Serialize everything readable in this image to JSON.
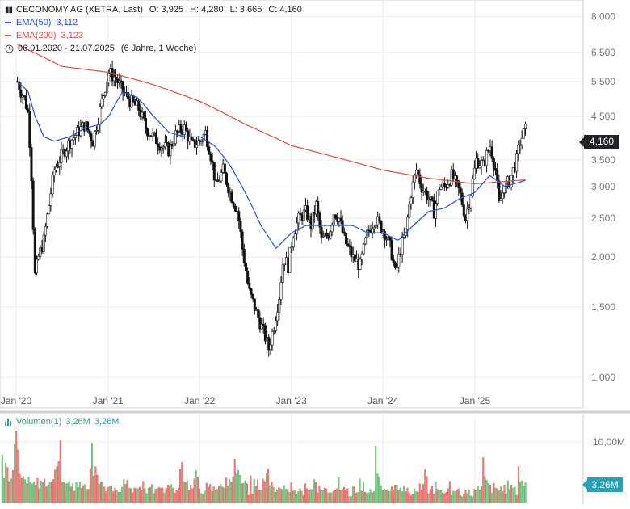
{
  "header": {
    "title": "CECONOMY AG (XETRA, Last)",
    "o_label": "O:",
    "o_value": "3,925",
    "h_label": "H:",
    "h_value": "4,280",
    "l_label": "L:",
    "l_value": "3,665",
    "c_label": "C:",
    "c_value": "4,160",
    "icon": "candlestick-icon"
  },
  "legend": {
    "ema50": {
      "label": "EMA(50)",
      "value": "3,112",
      "color": "#2a4fd6"
    },
    "ema200": {
      "label": "EMA(200)",
      "value": "3,123",
      "color": "#e04c44"
    },
    "range": {
      "icon": "clock-icon",
      "text": "06.01.2020 - 21.07.2025",
      "duration": "(6 Jahre, 1 Woche)"
    }
  },
  "price_badge": "4,160",
  "volume": {
    "label": "Volumen(1)",
    "value1": "3,26M",
    "value2": "3,26M",
    "badge": "3,26M",
    "axis_label": "10,00M"
  },
  "chart_data": [
    {
      "type": "candlestick",
      "title": "CECONOMY AG (XETRA, Last)",
      "y_scale": "log",
      "ylim": [
        0.95,
        8.8
      ],
      "y_ticks": [
        {
          "value": 8.0,
          "label": "8,000"
        },
        {
          "value": 6.5,
          "label": "6,500"
        },
        {
          "value": 5.5,
          "label": "5,500"
        },
        {
          "value": 4.5,
          "label": "4,500"
        },
        {
          "value": 3.5,
          "label": "3,500"
        },
        {
          "value": 3.0,
          "label": "3,000"
        },
        {
          "value": 2.5,
          "label": "2,500"
        },
        {
          "value": 2.0,
          "label": "2,000"
        },
        {
          "value": 1.5,
          "label": "1,500"
        },
        {
          "value": 1.0,
          "label": "1,000"
        }
      ],
      "x_range": [
        "2020-01-06",
        "2025-07-21"
      ],
      "x_ticks": [
        {
          "date": "2020-01-01",
          "label": "Jan '20"
        },
        {
          "date": "2021-01-01",
          "label": "Jan '21"
        },
        {
          "date": "2022-01-01",
          "label": "Jan '22"
        },
        {
          "date": "2023-01-01",
          "label": "Jan '23"
        },
        {
          "date": "2024-01-01",
          "label": "Jan '24"
        },
        {
          "date": "2025-01-01",
          "label": "Jan '25"
        }
      ],
      "grid": true,
      "price_anchors": [
        [
          "2020-01-06",
          5.5
        ],
        [
          "2020-01-20",
          5.2
        ],
        [
          "2020-02-03",
          5.0
        ],
        [
          "2020-02-17",
          4.6
        ],
        [
          "2020-03-02",
          3.2
        ],
        [
          "2020-03-09",
          2.4
        ],
        [
          "2020-03-16",
          1.8
        ],
        [
          "2020-03-30",
          2.0
        ],
        [
          "2020-04-20",
          2.2
        ],
        [
          "2020-05-11",
          2.7
        ],
        [
          "2020-06-01",
          3.3
        ],
        [
          "2020-07-01",
          3.6
        ],
        [
          "2020-08-03",
          3.9
        ],
        [
          "2020-09-01",
          4.1
        ],
        [
          "2020-10-01",
          4.3
        ],
        [
          "2020-11-02",
          3.9
        ],
        [
          "2020-12-01",
          4.7
        ],
        [
          "2021-01-04",
          5.8
        ],
        [
          "2021-02-01",
          5.6
        ],
        [
          "2021-03-01",
          5.2
        ],
        [
          "2021-04-01",
          4.9
        ],
        [
          "2021-05-03",
          4.7
        ],
        [
          "2021-06-01",
          4.2
        ],
        [
          "2021-07-01",
          4.0
        ],
        [
          "2021-08-02",
          3.8
        ],
        [
          "2021-09-01",
          3.7
        ],
        [
          "2021-10-01",
          4.1
        ],
        [
          "2021-11-01",
          4.2
        ],
        [
          "2021-12-01",
          3.8
        ],
        [
          "2022-01-03",
          3.9
        ],
        [
          "2022-01-24",
          4.1
        ],
        [
          "2022-02-14",
          3.6
        ],
        [
          "2022-03-07",
          3.0
        ],
        [
          "2022-04-04",
          3.3
        ],
        [
          "2022-05-02",
          2.9
        ],
        [
          "2022-06-01",
          2.6
        ],
        [
          "2022-06-20",
          2.1
        ],
        [
          "2022-07-15",
          1.65
        ],
        [
          "2022-08-15",
          1.45
        ],
        [
          "2022-09-12",
          1.3
        ],
        [
          "2022-10-03",
          1.18
        ],
        [
          "2022-10-24",
          1.35
        ],
        [
          "2022-11-14",
          1.6
        ],
        [
          "2022-12-01",
          2.0
        ],
        [
          "2022-12-19",
          1.9
        ],
        [
          "2023-01-09",
          2.3
        ],
        [
          "2023-02-01",
          2.5
        ],
        [
          "2023-03-01",
          2.6
        ],
        [
          "2023-03-20",
          2.4
        ],
        [
          "2023-04-10",
          2.7
        ],
        [
          "2023-05-01",
          2.2
        ],
        [
          "2023-06-01",
          2.3
        ],
        [
          "2023-06-20",
          2.6
        ],
        [
          "2023-07-10",
          2.5
        ],
        [
          "2023-08-01",
          2.2
        ],
        [
          "2023-09-01",
          2.0
        ],
        [
          "2023-10-02",
          1.9
        ],
        [
          "2023-11-01",
          2.3
        ],
        [
          "2023-12-01",
          2.5
        ],
        [
          "2024-01-08",
          2.3
        ],
        [
          "2024-02-01",
          2.1
        ],
        [
          "2024-02-20",
          1.8
        ],
        [
          "2024-03-11",
          2.1
        ],
        [
          "2024-04-01",
          2.3
        ],
        [
          "2024-04-22",
          2.9
        ],
        [
          "2024-05-13",
          3.3
        ],
        [
          "2024-06-03",
          3.0
        ],
        [
          "2024-07-01",
          2.8
        ],
        [
          "2024-07-22",
          2.6
        ],
        [
          "2024-08-12",
          3.0
        ],
        [
          "2024-09-02",
          3.0
        ],
        [
          "2024-10-01",
          3.2
        ],
        [
          "2024-11-01",
          2.9
        ],
        [
          "2024-11-25",
          2.5
        ],
        [
          "2024-12-16",
          2.9
        ],
        [
          "2025-01-06",
          3.5
        ],
        [
          "2025-02-03",
          3.4
        ],
        [
          "2025-03-03",
          3.8
        ],
        [
          "2025-03-24",
          3.3
        ],
        [
          "2025-04-07",
          2.7
        ],
        [
          "2025-04-28",
          3.0
        ],
        [
          "2025-05-19",
          3.1
        ],
        [
          "2025-06-16",
          3.5
        ],
        [
          "2025-06-30",
          3.9
        ],
        [
          "2025-07-21",
          4.16
        ]
      ],
      "ema50_anchors": [
        [
          "2020-01-06",
          5.5
        ],
        [
          "2020-02-17",
          5.2
        ],
        [
          "2020-03-16",
          4.5
        ],
        [
          "2020-04-20",
          4.0
        ],
        [
          "2020-06-01",
          3.9
        ],
        [
          "2020-08-01",
          4.0
        ],
        [
          "2020-10-01",
          4.2
        ],
        [
          "2020-12-01",
          4.3
        ],
        [
          "2021-01-04",
          4.5
        ],
        [
          "2021-03-01",
          5.2
        ],
        [
          "2021-05-01",
          5.0
        ],
        [
          "2021-07-01",
          4.5
        ],
        [
          "2021-09-01",
          4.1
        ],
        [
          "2021-11-01",
          4.0
        ],
        [
          "2022-01-03",
          4.0
        ],
        [
          "2022-03-01",
          3.8
        ],
        [
          "2022-05-01",
          3.4
        ],
        [
          "2022-07-01",
          2.9
        ],
        [
          "2022-09-01",
          2.4
        ],
        [
          "2022-11-01",
          2.1
        ],
        [
          "2023-01-02",
          2.3
        ],
        [
          "2023-03-01",
          2.4
        ],
        [
          "2023-05-01",
          2.4
        ],
        [
          "2023-07-01",
          2.4
        ],
        [
          "2023-09-01",
          2.4
        ],
        [
          "2023-11-01",
          2.3
        ],
        [
          "2024-01-01",
          2.3
        ],
        [
          "2024-03-01",
          2.2
        ],
        [
          "2024-05-01",
          2.4
        ],
        [
          "2024-07-01",
          2.6
        ],
        [
          "2024-09-01",
          2.65
        ],
        [
          "2024-11-01",
          2.8
        ],
        [
          "2025-01-01",
          2.9
        ],
        [
          "2025-03-01",
          3.2
        ],
        [
          "2025-05-01",
          3.0
        ],
        [
          "2025-07-21",
          3.112
        ]
      ],
      "ema200_anchors": [
        [
          "2020-01-06",
          6.8
        ],
        [
          "2020-07-01",
          6.0
        ],
        [
          "2021-01-04",
          5.8
        ],
        [
          "2021-07-01",
          5.4
        ],
        [
          "2022-01-03",
          4.9
        ],
        [
          "2022-07-01",
          4.3
        ],
        [
          "2023-01-02",
          3.8
        ],
        [
          "2023-07-01",
          3.55
        ],
        [
          "2024-01-01",
          3.3
        ],
        [
          "2024-07-01",
          3.15
        ],
        [
          "2025-01-01",
          3.05
        ],
        [
          "2025-07-21",
          3.123
        ]
      ],
      "volume": {
        "ylim": [
          0,
          14
        ],
        "unit": "M",
        "values": [
          7.9,
          4.0,
          6.5,
          5.8,
          3.5,
          3.9,
          5.3,
          9.6,
          11.8,
          8.7,
          4.7,
          4.0,
          4.3,
          3.8,
          3.1,
          4.2,
          3.3,
          3.1,
          3.4,
          2.9,
          4.0,
          2.3,
          3.6,
          3.3,
          3.9,
          2.6,
          2.9,
          3.3,
          3.4,
          3.8,
          5.4,
          5.9,
          6.8,
          10.3,
          3.4,
          3.3,
          3.1,
          3.2,
          3.5,
          2.6,
          3.1,
          1.9,
          3.3,
          2.5,
          3.4,
          2.4,
          2.8,
          3.0,
          2.2,
          2.2,
          5.6,
          9.8,
          4.4,
          5.9,
          4.5,
          3.0,
          3.4,
          3.5,
          2.6,
          1.8,
          2.5,
          2.7,
          2.7,
          1.8,
          2.4,
          2.0,
          1.7,
          1.7,
          2.5,
          3.8,
          3.0,
          3.7,
          2.4,
          2.3,
          1.6,
          2.4,
          2.3,
          2.3,
          2.5,
          2.0,
          3.5,
          2.3,
          1.5,
          2.4,
          2.5,
          3.0,
          1.5,
          2.2,
          2.3,
          2.5,
          2.4,
          2.4,
          1.6,
          2.3,
          2.9,
          2.8,
          3.0,
          2.4,
          1.6,
          2.0,
          2.4,
          5.5,
          6.6,
          3.5,
          3.3,
          3.6,
          2.0,
          2.9,
          2.3,
          3.9,
          5.3,
          4.2,
          2.3,
          1.5,
          1.4,
          1.9,
          3.2,
          2.5,
          3.0,
          1.8,
          2.6,
          2.1,
          2.2,
          2.7,
          3.0,
          2.6,
          2.4,
          4.1,
          2.8,
          3.8,
          3.4,
          4.2,
          7.2,
          4.7,
          5.3,
          4.5,
          3.1,
          3.2,
          3.6,
          3.1,
          1.2,
          4.4,
          1.4,
          3.8,
          2.7,
          3.7,
          2.1,
          2.0,
          3.9,
          3.5,
          4.9,
          5.5,
          2.8,
          3.4,
          2.5,
          1.7,
          2.1,
          2.5,
          2.3,
          2.2,
          2.8,
          2.2,
          2.2,
          1.7,
          3.3,
          1.9,
          2.0,
          1.3,
          1.8,
          2.3,
          1.9,
          1.2,
          3.1,
          2.3,
          2.0,
          2.2,
          2.1,
          3.8,
          3.3,
          1.6,
          2.7,
          2.1,
          2.0,
          2.4,
          2.3,
          1.6,
          1.6,
          1.6,
          1.9,
          2.1,
          2.3,
          4.1,
          2.0,
          2.2,
          2.5,
          2.0,
          2.3,
          1.0,
          1.0,
          2.6,
          2.6,
          1.6,
          1.7,
          3.9,
          1.9,
          3.4,
          1.7,
          1.5,
          1.6,
          2.2,
          1.6,
          1.8,
          9.3,
          4.7,
          4.2,
          2.8,
          2.0,
          2.2,
          2.0,
          2.2,
          1.8,
          2.6,
          2.1,
          2.9,
          2.9,
          2.0,
          2.4,
          1.8,
          2.7,
          1.8,
          2.4,
          1.6,
          1.2,
          1.4,
          2.3,
          1.8,
          1.7,
          3.1,
          2.1,
          3.0,
          5.4,
          4.3,
          1.5,
          2.2,
          2.7,
          1.4,
          3.4,
          2.2,
          2.0,
          2.1,
          1.6,
          1.5,
          1.7,
          2.3,
          3.5,
          1.2,
          1.9,
          1.8,
          2.1,
          2.3,
          1.2,
          1.0,
          1.4,
          2.1,
          1.5,
          2.1,
          1.1,
          1.0,
          2.2,
          2.0,
          2.7,
          2.1,
          2.6,
          7.4,
          4.3,
          3.7,
          3.2,
          2.9,
          1.6,
          3.2,
          2.4,
          2.3,
          2.0,
          2.6,
          1.8,
          2.9,
          1.4,
          3.6,
          2.2,
          2.9,
          2.4,
          2.6,
          1.2,
          5.9,
          3.4,
          3.6,
          2.7,
          3.3
        ],
        "colors": [
          "g",
          "g",
          "g",
          "r",
          "r",
          "g",
          "r",
          "g",
          "r",
          "r",
          "r",
          "r",
          "g",
          "g",
          "r",
          "g",
          "g",
          "g",
          "g",
          "r",
          "r",
          "g",
          "g",
          "g",
          "r",
          "r",
          "g",
          "g",
          "r",
          "r",
          "r",
          "g",
          "r",
          "r",
          "g",
          "r",
          "g",
          "g",
          "g",
          "r",
          "g",
          "r",
          "g",
          "g",
          "g",
          "r",
          "r",
          "g",
          "g",
          "r",
          "r",
          "g",
          "r",
          "r",
          "r",
          "g",
          "r",
          "g",
          "r",
          "r",
          "r",
          "g",
          "r",
          "r",
          "r",
          "g",
          "r",
          "g",
          "g",
          "g",
          "r",
          "r",
          "g",
          "r",
          "r",
          "r",
          "r",
          "g",
          "r",
          "r",
          "r",
          "g",
          "g",
          "g",
          "r",
          "g",
          "g",
          "r",
          "g",
          "r",
          "r",
          "r",
          "g",
          "r",
          "r",
          "r",
          "g",
          "r",
          "r",
          "r",
          "r",
          "r",
          "r",
          "g",
          "r",
          "g",
          "r",
          "r",
          "r",
          "r",
          "g",
          "r",
          "r",
          "g",
          "r",
          "g",
          "r",
          "r",
          "r",
          "g",
          "r",
          "g",
          "g",
          "r",
          "g",
          "r",
          "g",
          "r",
          "g",
          "g",
          "r",
          "g",
          "r",
          "g",
          "g",
          "g",
          "r",
          "g",
          "g",
          "r",
          "r",
          "r",
          "r",
          "g",
          "r",
          "r",
          "r",
          "g",
          "r",
          "r",
          "g",
          "r",
          "g",
          "r",
          "g",
          "r",
          "g",
          "r",
          "r",
          "g",
          "g",
          "g",
          "r",
          "g",
          "r",
          "r",
          "g",
          "g",
          "g",
          "r",
          "g",
          "r",
          "r",
          "r",
          "r",
          "g",
          "g",
          "g",
          "r",
          "r",
          "r",
          "g",
          "g",
          "r",
          "r",
          "g",
          "r",
          "g",
          "r",
          "r",
          "r",
          "g",
          "r",
          "r",
          "r",
          "r",
          "r",
          "g",
          "r",
          "g",
          "r",
          "r",
          "g",
          "g",
          "r",
          "g",
          "r",
          "g",
          "g",
          "g",
          "r",
          "g",
          "g",
          "g",
          "g",
          "g",
          "r",
          "g",
          "r",
          "g",
          "g",
          "r",
          "r",
          "r",
          "g",
          "r",
          "g",
          "g",
          "g",
          "r",
          "r",
          "r",
          "r",
          "r",
          "g",
          "g",
          "r",
          "r",
          "r",
          "r",
          "r",
          "r",
          "g",
          "r",
          "r",
          "r",
          "g",
          "r",
          "g",
          "g",
          "r",
          "r",
          "r",
          "r",
          "r",
          "g",
          "g",
          "g",
          "r",
          "r",
          "g",
          "g",
          "r",
          "r",
          "g",
          "g",
          "g",
          "g",
          "r",
          "g",
          "g",
          "g",
          "r",
          "r",
          "g",
          "g",
          "g",
          "r",
          "g",
          "r",
          "g",
          "r",
          "g",
          "g",
          "r",
          "r",
          "g",
          "g",
          "g",
          "r",
          "g",
          "g",
          "r",
          "r",
          "g",
          "g",
          "g",
          "g"
        ],
        "y_ticks": [
          {
            "value": 10,
            "label": "10,00M"
          }
        ]
      }
    }
  ]
}
